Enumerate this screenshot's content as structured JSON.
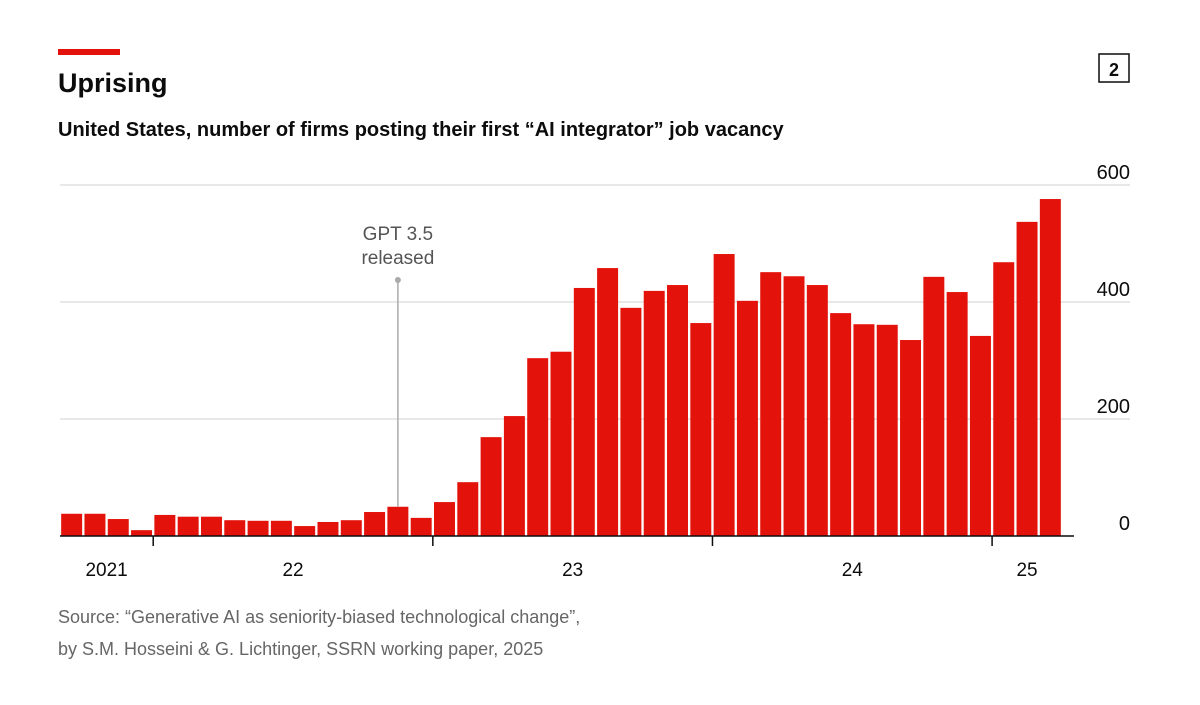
{
  "chart_data": {
    "type": "bar",
    "title": "Uprising",
    "subtitle": "United States, number of firms posting their first “AI integrator” job vacancy",
    "chart_number": "2",
    "source": [
      "Source: “Generative AI as seniority-biased technological change”,",
      "by S.M. Hosseini & G. Lichtinger, SSRN working paper, 2025"
    ],
    "color": "#e3120b",
    "categories": [
      null,
      null,
      null,
      null,
      null,
      null,
      null,
      null,
      null,
      null,
      null,
      null,
      null,
      null,
      null,
      null,
      null,
      null,
      null,
      null,
      null,
      null,
      null,
      null,
      null,
      null,
      null,
      null,
      null,
      null,
      null,
      null,
      null,
      null,
      null,
      null,
      null,
      null,
      null,
      null,
      null,
      null,
      null
    ],
    "values": [
      38,
      38,
      29,
      10,
      36,
      33,
      33,
      27,
      26,
      26,
      17,
      24,
      27,
      41,
      50,
      31,
      58,
      92,
      169,
      205,
      304,
      315,
      424,
      458,
      390,
      419,
      429,
      364,
      482,
      402,
      451,
      444,
      429,
      381,
      362,
      361,
      335,
      443,
      417,
      342,
      468,
      537,
      576
    ],
    "xtick_groups": [
      {
        "label": "2021",
        "months": 4
      },
      {
        "label": "22",
        "months": 12
      },
      {
        "label": "23",
        "months": 12
      },
      {
        "label": "24",
        "months": 12
      },
      {
        "label": "25",
        "months": 3
      }
    ],
    "annotation": {
      "lines": [
        "GPT 3.5",
        "released"
      ],
      "index": 14
    },
    "ylim": [
      0,
      600
    ],
    "yticks": [
      0,
      200,
      400,
      600
    ],
    "grid": true
  }
}
